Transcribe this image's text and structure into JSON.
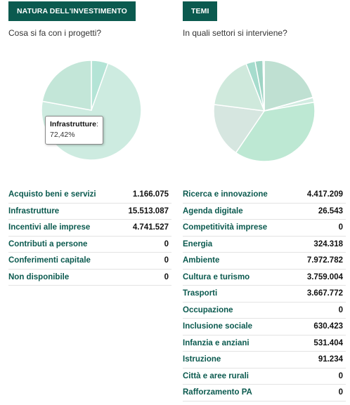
{
  "left": {
    "tab_label": "NATURA DELL'INVESTIMENTO",
    "subtitle": "Cosa si fa con i progetti?",
    "tooltip": {
      "label": "Infrastrutture",
      "value": "72,42%"
    },
    "rows": [
      {
        "label": "Acquisto beni e servizi",
        "value": "1.166.075"
      },
      {
        "label": "Infrastrutture",
        "value": "15.513.087"
      },
      {
        "label": "Incentivi alle imprese",
        "value": "4.741.527"
      },
      {
        "label": "Contributi a persone",
        "value": "0"
      },
      {
        "label": "Conferimenti capitale",
        "value": "0"
      },
      {
        "label": "Non disponibile",
        "value": "0"
      }
    ]
  },
  "right": {
    "tab_label": "TEMI",
    "subtitle": "In quali settori si interviene?",
    "rows": [
      {
        "label": "Ricerca e innovazione",
        "value": "4.417.209"
      },
      {
        "label": "Agenda digitale",
        "value": "26.543"
      },
      {
        "label": "Competitività imprese",
        "value": "0"
      },
      {
        "label": "Energia",
        "value": "324.318"
      },
      {
        "label": "Ambiente",
        "value": "7.972.782"
      },
      {
        "label": "Cultura e turismo",
        "value": "3.759.004"
      },
      {
        "label": "Trasporti",
        "value": "3.667.772"
      },
      {
        "label": "Occupazione",
        "value": "0"
      },
      {
        "label": "Inclusione sociale",
        "value": "630.423"
      },
      {
        "label": "Infanzia e anziani",
        "value": "531.404"
      },
      {
        "label": "Istruzione",
        "value": "91.234"
      },
      {
        "label": "Città e aree rurali",
        "value": "0"
      },
      {
        "label": "Rafforzamento PA",
        "value": "0"
      }
    ]
  },
  "colors": {
    "tab_bg": "#0b5a4f",
    "label_text": "#0b5a4f",
    "pie_left": [
      "#b4e4d6",
      "#cdebe0",
      "#c3e6d8",
      "#d4f0e3",
      "#c0e2d4",
      "#d9efe7"
    ],
    "pie_right": [
      "#bfe0d2",
      "#8fd3c2",
      "#cfe8dd",
      "#d2ece1",
      "#bde8d3",
      "#d6e6e0",
      "#cfe9dc",
      "#e0f0ea",
      "#a6dccd",
      "#9ed4c4",
      "#c6e8da",
      "#e3f0eb",
      "#e9f3ef"
    ]
  },
  "chart_data": [
    {
      "type": "pie",
      "categories": [
        "Acquisto beni e servizi",
        "Infrastrutture",
        "Incentivi alle imprese",
        "Contributi a persone",
        "Conferimenti capitale",
        "Non disponibile"
      ],
      "values": [
        1166075,
        15513087,
        4741527,
        0,
        0,
        0
      ]
    },
    {
      "type": "pie",
      "categories": [
        "Ricerca e innovazione",
        "Agenda digitale",
        "Competitività imprese",
        "Energia",
        "Ambiente",
        "Cultura e turismo",
        "Trasporti",
        "Occupazione",
        "Inclusione sociale",
        "Infanzia e anziani",
        "Istruzione",
        "Città e aree rurali",
        "Rafforzamento PA"
      ],
      "values": [
        4417209,
        26543,
        0,
        324318,
        7972782,
        3759004,
        3667772,
        0,
        630423,
        531404,
        91234,
        0,
        0
      ]
    }
  ]
}
